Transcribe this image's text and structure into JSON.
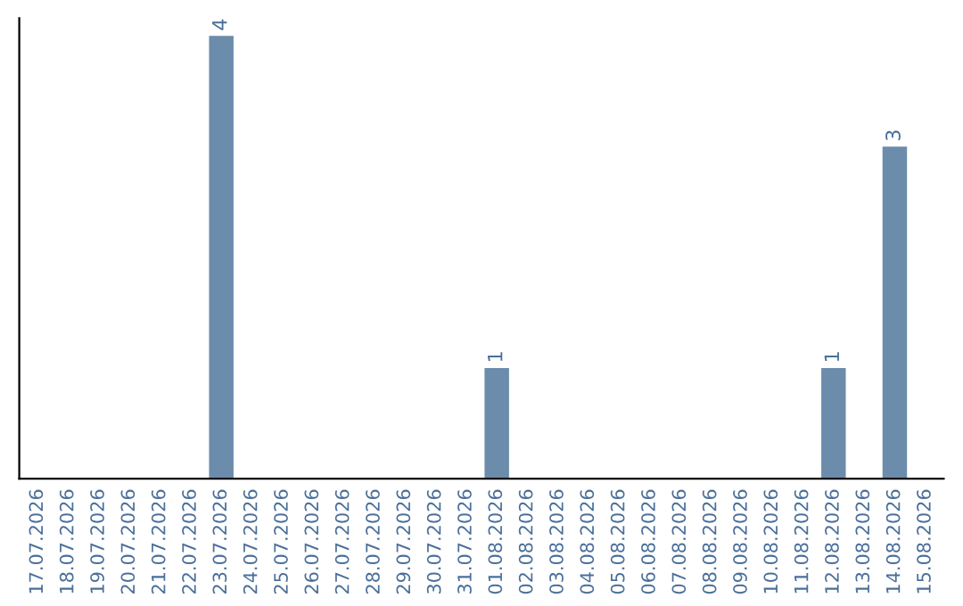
{
  "chart_data": {
    "type": "bar",
    "categories": [
      "17.07.2026",
      "18.07.2026",
      "19.07.2026",
      "20.07.2026",
      "21.07.2026",
      "22.07.2026",
      "23.07.2026",
      "24.07.2026",
      "25.07.2026",
      "26.07.2026",
      "27.07.2026",
      "28.07.2026",
      "29.07.2026",
      "30.07.2026",
      "31.07.2026",
      "01.08.2026",
      "02.08.2026",
      "03.08.2026",
      "04.08.2026",
      "05.08.2026",
      "06.08.2026",
      "07.08.2026",
      "08.08.2026",
      "09.08.2026",
      "10.08.2026",
      "11.08.2026",
      "12.08.2026",
      "13.08.2026",
      "14.08.2026",
      "15.08.2026"
    ],
    "values": [
      0,
      0,
      0,
      0,
      0,
      0,
      4,
      0,
      0,
      0,
      0,
      0,
      0,
      0,
      0,
      1,
      0,
      0,
      0,
      0,
      0,
      0,
      0,
      0,
      0,
      0,
      1,
      0,
      3,
      0
    ],
    "color": "#6b8cab",
    "value_labels": [
      null,
      null,
      null,
      null,
      null,
      null,
      "4",
      null,
      null,
      null,
      null,
      null,
      null,
      null,
      null,
      "1",
      null,
      null,
      null,
      null,
      null,
      null,
      null,
      null,
      null,
      null,
      "1",
      null,
      "3",
      null
    ],
    "tick_labels": "x",
    "grid": false
  }
}
